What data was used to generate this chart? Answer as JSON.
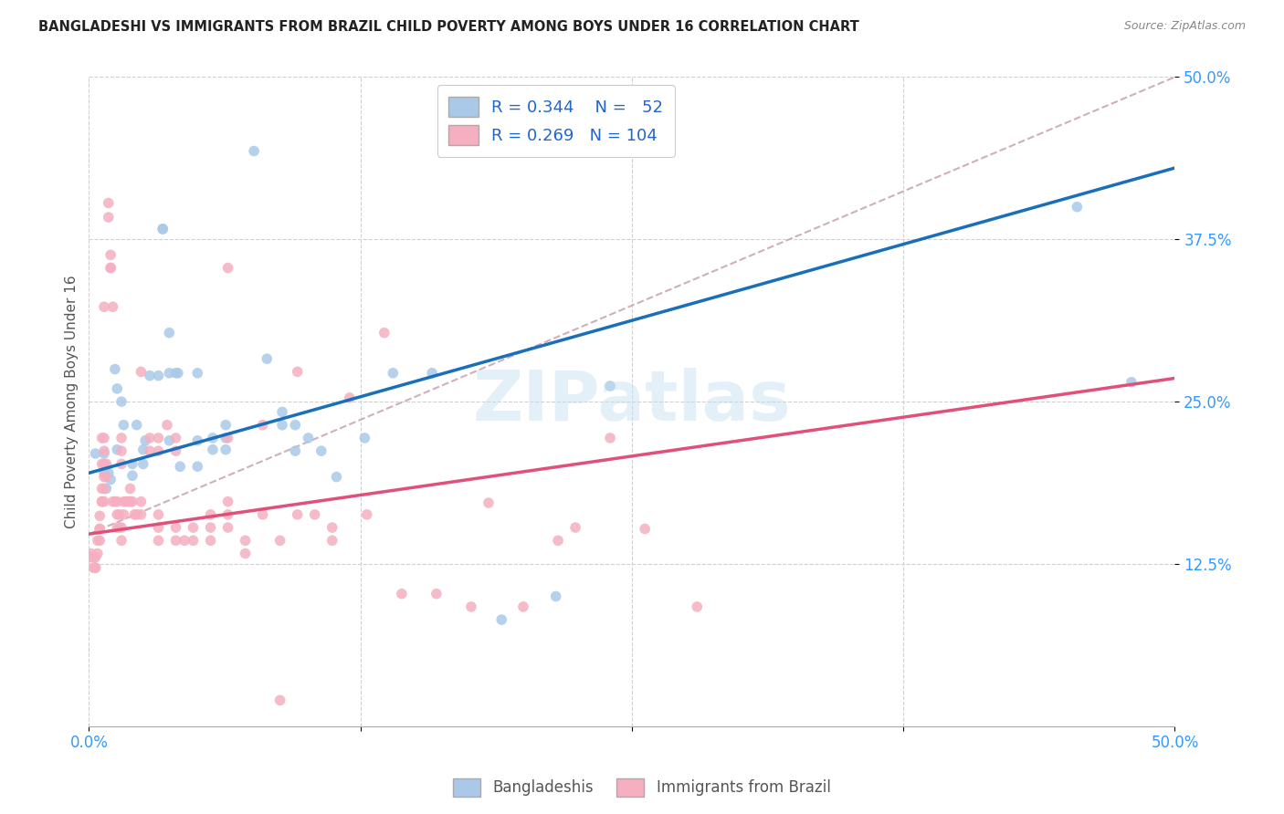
{
  "title": "BANGLADESHI VS IMMIGRANTS FROM BRAZIL CHILD POVERTY AMONG BOYS UNDER 16 CORRELATION CHART",
  "source": "Source: ZipAtlas.com",
  "ylabel": "Child Poverty Among Boys Under 16",
  "xlim": [
    0,
    0.5
  ],
  "ylim": [
    0,
    0.5
  ],
  "watermark": "ZIPatlas",
  "blue_R": 0.344,
  "blue_N": 52,
  "pink_R": 0.269,
  "pink_N": 104,
  "blue_color": "#aac9e8",
  "pink_color": "#f5afc0",
  "blue_line_color": "#1a6fba",
  "pink_line_color": "#e0507a",
  "dashed_line_color": "#d0b0b8",
  "blue_line": [
    0.195,
    0.43
  ],
  "pink_line": [
    0.148,
    0.268
  ],
  "dashed_line": [
    0.148,
    0.5
  ],
  "blue_scatter": [
    [
      0.003,
      0.21
    ],
    [
      0.007,
      0.21
    ],
    [
      0.007,
      0.195
    ],
    [
      0.008,
      0.183
    ],
    [
      0.009,
      0.195
    ],
    [
      0.01,
      0.19
    ],
    [
      0.012,
      0.275
    ],
    [
      0.013,
      0.26
    ],
    [
      0.013,
      0.213
    ],
    [
      0.015,
      0.25
    ],
    [
      0.016,
      0.232
    ],
    [
      0.02,
      0.193
    ],
    [
      0.02,
      0.202
    ],
    [
      0.022,
      0.232
    ],
    [
      0.025,
      0.213
    ],
    [
      0.025,
      0.202
    ],
    [
      0.026,
      0.22
    ],
    [
      0.028,
      0.27
    ],
    [
      0.032,
      0.27
    ],
    [
      0.034,
      0.383
    ],
    [
      0.034,
      0.383
    ],
    [
      0.037,
      0.303
    ],
    [
      0.037,
      0.272
    ],
    [
      0.037,
      0.22
    ],
    [
      0.04,
      0.272
    ],
    [
      0.041,
      0.272
    ],
    [
      0.042,
      0.2
    ],
    [
      0.05,
      0.272
    ],
    [
      0.05,
      0.22
    ],
    [
      0.05,
      0.2
    ],
    [
      0.057,
      0.222
    ],
    [
      0.057,
      0.213
    ],
    [
      0.063,
      0.213
    ],
    [
      0.063,
      0.232
    ],
    [
      0.063,
      0.222
    ],
    [
      0.076,
      0.443
    ],
    [
      0.082,
      0.283
    ],
    [
      0.089,
      0.242
    ],
    [
      0.089,
      0.232
    ],
    [
      0.095,
      0.232
    ],
    [
      0.095,
      0.212
    ],
    [
      0.101,
      0.222
    ],
    [
      0.107,
      0.212
    ],
    [
      0.114,
      0.192
    ],
    [
      0.127,
      0.222
    ],
    [
      0.14,
      0.272
    ],
    [
      0.158,
      0.272
    ],
    [
      0.19,
      0.082
    ],
    [
      0.215,
      0.1
    ],
    [
      0.24,
      0.262
    ],
    [
      0.455,
      0.4
    ],
    [
      0.48,
      0.265
    ]
  ],
  "pink_scatter": [
    [
      0.0,
      0.13
    ],
    [
      0.001,
      0.133
    ],
    [
      0.002,
      0.13
    ],
    [
      0.002,
      0.122
    ],
    [
      0.003,
      0.122
    ],
    [
      0.003,
      0.13
    ],
    [
      0.003,
      0.122
    ],
    [
      0.004,
      0.143
    ],
    [
      0.004,
      0.133
    ],
    [
      0.005,
      0.152
    ],
    [
      0.005,
      0.143
    ],
    [
      0.005,
      0.152
    ],
    [
      0.005,
      0.162
    ],
    [
      0.006,
      0.183
    ],
    [
      0.006,
      0.173
    ],
    [
      0.006,
      0.222
    ],
    [
      0.006,
      0.202
    ],
    [
      0.006,
      0.173
    ],
    [
      0.007,
      0.222
    ],
    [
      0.007,
      0.212
    ],
    [
      0.007,
      0.202
    ],
    [
      0.007,
      0.192
    ],
    [
      0.007,
      0.183
    ],
    [
      0.007,
      0.173
    ],
    [
      0.007,
      0.323
    ],
    [
      0.008,
      0.202
    ],
    [
      0.008,
      0.192
    ],
    [
      0.009,
      0.392
    ],
    [
      0.009,
      0.403
    ],
    [
      0.01,
      0.353
    ],
    [
      0.01,
      0.363
    ],
    [
      0.01,
      0.353
    ],
    [
      0.011,
      0.323
    ],
    [
      0.011,
      0.173
    ],
    [
      0.012,
      0.173
    ],
    [
      0.013,
      0.173
    ],
    [
      0.013,
      0.163
    ],
    [
      0.013,
      0.153
    ],
    [
      0.014,
      0.163
    ],
    [
      0.014,
      0.153
    ],
    [
      0.015,
      0.222
    ],
    [
      0.015,
      0.212
    ],
    [
      0.015,
      0.202
    ],
    [
      0.015,
      0.153
    ],
    [
      0.015,
      0.143
    ],
    [
      0.016,
      0.173
    ],
    [
      0.016,
      0.163
    ],
    [
      0.017,
      0.173
    ],
    [
      0.018,
      0.173
    ],
    [
      0.019,
      0.183
    ],
    [
      0.019,
      0.173
    ],
    [
      0.02,
      0.173
    ],
    [
      0.021,
      0.163
    ],
    [
      0.022,
      0.163
    ],
    [
      0.024,
      0.273
    ],
    [
      0.024,
      0.173
    ],
    [
      0.024,
      0.163
    ],
    [
      0.028,
      0.222
    ],
    [
      0.028,
      0.212
    ],
    [
      0.032,
      0.222
    ],
    [
      0.032,
      0.212
    ],
    [
      0.032,
      0.153
    ],
    [
      0.032,
      0.143
    ],
    [
      0.032,
      0.163
    ],
    [
      0.036,
      0.232
    ],
    [
      0.04,
      0.222
    ],
    [
      0.04,
      0.212
    ],
    [
      0.04,
      0.153
    ],
    [
      0.04,
      0.143
    ],
    [
      0.044,
      0.143
    ],
    [
      0.048,
      0.153
    ],
    [
      0.048,
      0.143
    ],
    [
      0.056,
      0.163
    ],
    [
      0.056,
      0.153
    ],
    [
      0.056,
      0.143
    ],
    [
      0.064,
      0.353
    ],
    [
      0.064,
      0.222
    ],
    [
      0.064,
      0.173
    ],
    [
      0.064,
      0.163
    ],
    [
      0.064,
      0.153
    ],
    [
      0.072,
      0.143
    ],
    [
      0.072,
      0.133
    ],
    [
      0.08,
      0.232
    ],
    [
      0.08,
      0.163
    ],
    [
      0.088,
      0.143
    ],
    [
      0.088,
      0.02
    ],
    [
      0.096,
      0.273
    ],
    [
      0.096,
      0.163
    ],
    [
      0.104,
      0.163
    ],
    [
      0.112,
      0.153
    ],
    [
      0.112,
      0.143
    ],
    [
      0.12,
      0.253
    ],
    [
      0.128,
      0.163
    ],
    [
      0.136,
      0.303
    ],
    [
      0.144,
      0.102
    ],
    [
      0.16,
      0.102
    ],
    [
      0.176,
      0.092
    ],
    [
      0.184,
      0.172
    ],
    [
      0.2,
      0.092
    ],
    [
      0.216,
      0.143
    ],
    [
      0.224,
      0.153
    ],
    [
      0.24,
      0.222
    ],
    [
      0.256,
      0.152
    ],
    [
      0.28,
      0.092
    ]
  ]
}
